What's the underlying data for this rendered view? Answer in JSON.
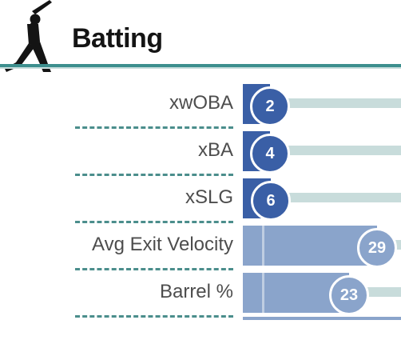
{
  "header": {
    "title": "Batting",
    "icon": "batter-silhouette-icon",
    "rule_color": "#3d8f8e"
  },
  "colors": {
    "elite": "#3a5fa6",
    "high": "#8aa4cb",
    "track": "#c8dcdb",
    "divider": "#4b8e8c"
  },
  "stats": [
    {
      "label": "xwOBA",
      "rank": "2",
      "percentile": 0.02,
      "color": "#3a5fa6"
    },
    {
      "label": "xBA",
      "rank": "4",
      "percentile": 0.04,
      "color": "#3a5fa6"
    },
    {
      "label": "xSLG",
      "rank": "6",
      "percentile": 0.06,
      "color": "#3a5fa6"
    },
    {
      "label": "Avg Exit Velocity",
      "rank": "29",
      "percentile": 0.29,
      "color": "#8aa4cb"
    },
    {
      "label": "Barrel %",
      "rank": "23",
      "percentile": 0.23,
      "color": "#8aa4cb"
    }
  ]
}
